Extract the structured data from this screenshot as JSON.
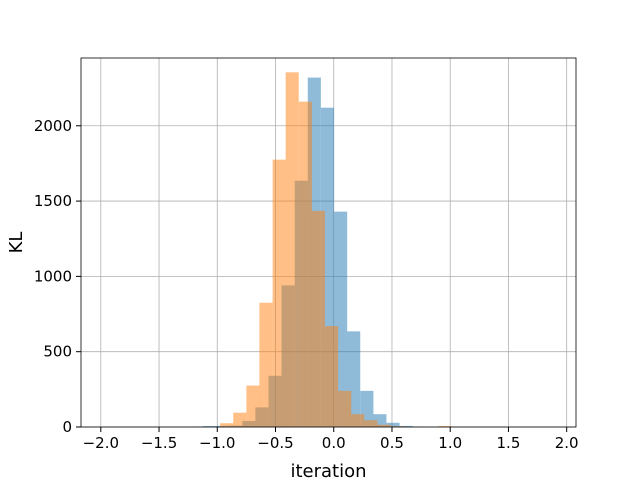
{
  "chart_data": {
    "type": "histogram",
    "title": "",
    "xlabel": "iteration",
    "ylabel": "KL",
    "xlim": [
      -2.17,
      2.08
    ],
    "ylim": [
      0,
      2450
    ],
    "xticks": [
      -2.0,
      -1.5,
      -1.0,
      -0.5,
      0.0,
      0.5,
      1.0,
      1.5,
      2.0
    ],
    "xtick_labels": [
      "−2.0",
      "−1.5",
      "−1.0",
      "−0.5",
      "0.0",
      "0.5",
      "1.0",
      "1.5",
      "2.0"
    ],
    "yticks": [
      0,
      500,
      1000,
      1500,
      2000
    ],
    "ytick_labels": [
      "0",
      "500",
      "1000",
      "1500",
      "2000"
    ],
    "grid": true,
    "bin_width": 0.1125,
    "series": [
      {
        "color": "#1f77b4",
        "opacity": 0.5,
        "bins": [
          {
            "x0": -1.235,
            "height": 3
          },
          {
            "x0": -1.123,
            "height": 6
          },
          {
            "x0": -1.01,
            "height": 7
          },
          {
            "x0": -0.898,
            "height": 9
          },
          {
            "x0": -0.785,
            "height": 40
          },
          {
            "x0": -0.673,
            "height": 130
          },
          {
            "x0": -0.56,
            "height": 340
          },
          {
            "x0": -0.448,
            "height": 940
          },
          {
            "x0": -0.335,
            "height": 1635
          },
          {
            "x0": -0.223,
            "height": 2320
          },
          {
            "x0": -0.11,
            "height": 2120
          },
          {
            "x0": 0.003,
            "height": 1430
          },
          {
            "x0": 0.115,
            "height": 635
          },
          {
            "x0": 0.228,
            "height": 240
          },
          {
            "x0": 0.34,
            "height": 85
          },
          {
            "x0": 0.453,
            "height": 28
          },
          {
            "x0": 0.565,
            "height": 7
          },
          {
            "x0": 0.678,
            "height": 3
          }
        ]
      },
      {
        "color": "#ff7f0e",
        "opacity": 0.5,
        "bins": [
          {
            "x0": -0.975,
            "height": 25
          },
          {
            "x0": -0.863,
            "height": 95
          },
          {
            "x0": -0.75,
            "height": 275
          },
          {
            "x0": -0.638,
            "height": 825
          },
          {
            "x0": -0.525,
            "height": 1775
          },
          {
            "x0": -0.413,
            "height": 2355
          },
          {
            "x0": -0.3,
            "height": 2160
          },
          {
            "x0": -0.188,
            "height": 1435
          },
          {
            "x0": -0.075,
            "height": 670
          },
          {
            "x0": 0.038,
            "height": 240
          },
          {
            "x0": 0.15,
            "height": 85
          },
          {
            "x0": 0.263,
            "height": 45
          },
          {
            "x0": 0.375,
            "height": 15
          },
          {
            "x0": 0.488,
            "height": 5
          },
          {
            "x0": 0.9,
            "height": 6
          }
        ]
      }
    ]
  }
}
